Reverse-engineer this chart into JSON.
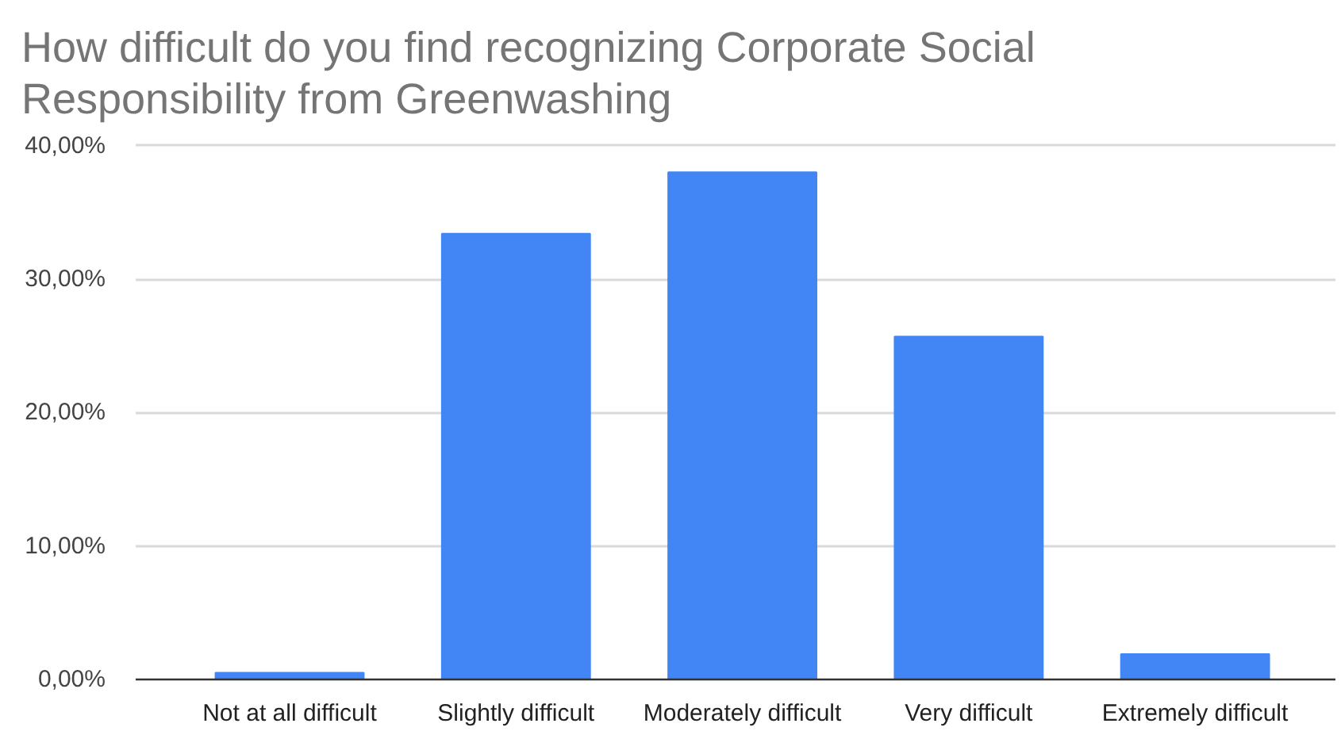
{
  "chart_data": {
    "type": "bar",
    "title": "How difficult do you find recognizing Corporate Social Responsibility from Greenwashing",
    "categories": [
      "Not at all difficult",
      "Slightly difficult",
      "Moderately difficult",
      "Very difficult",
      "Extremely difficult"
    ],
    "values": [
      0.5,
      33.4,
      38.0,
      25.7,
      1.9
    ],
    "color": "#4285f4",
    "ylim": [
      0,
      40
    ],
    "yticks": [
      {
        "value": 0,
        "label": "0,00%"
      },
      {
        "value": 10,
        "label": "10,00%"
      },
      {
        "value": 20,
        "label": "20,00%"
      },
      {
        "value": 30,
        "label": "30,00%"
      },
      {
        "value": 40,
        "label": "40,00%"
      }
    ],
    "grid": "y"
  }
}
